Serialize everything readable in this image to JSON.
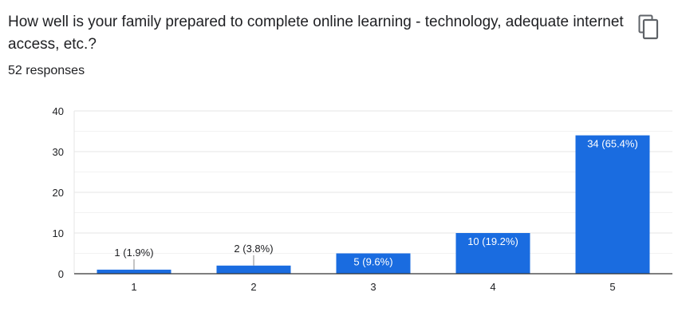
{
  "question": {
    "title": "How well is your family prepared to complete online learning - technology, adequate internet access, etc.?",
    "response_count": "52 responses"
  },
  "icons": {
    "copy": "copy-icon"
  },
  "colors": {
    "bar": "#1a6ce0",
    "grid": "#e6e6e6",
    "axis": "#333333",
    "text": "#202124"
  },
  "chart_data": {
    "type": "bar",
    "categories": [
      "1",
      "2",
      "3",
      "4",
      "5"
    ],
    "values": [
      1,
      2,
      5,
      10,
      34
    ],
    "data_labels": [
      "1 (1.9%)",
      "2 (3.8%)",
      "5 (9.6%)",
      "10 (19.2%)",
      "34 (65.4%)"
    ],
    "yticks": [
      "0",
      "10",
      "20",
      "30",
      "40"
    ],
    "ylim": [
      0,
      40
    ],
    "xlabel": "",
    "ylabel": "",
    "grid": true
  }
}
